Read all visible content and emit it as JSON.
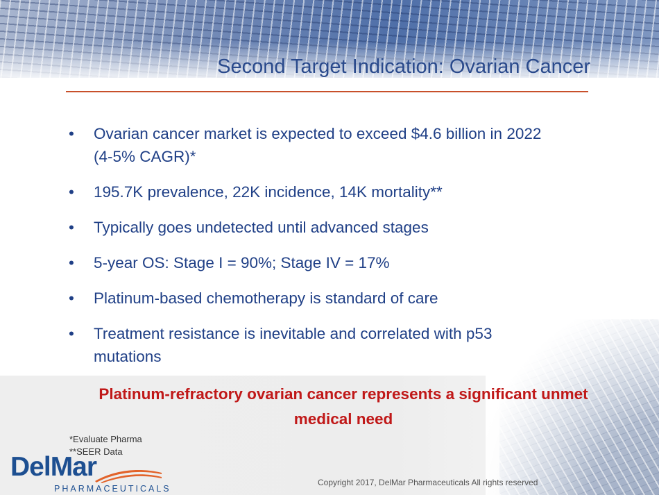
{
  "slide": {
    "title": "Second Target Indication:  Ovarian Cancer",
    "bullets": [
      {
        "line1": "Ovarian cancer market is expected to exceed $4.6 billion in 2022",
        "line2": "(4-5% CAGR)*"
      },
      {
        "line1": "195.7K prevalence, 22K incidence, 14K mortality**",
        "line2": ""
      },
      {
        "line1": "Typically goes undetected until advanced stages",
        "line2": ""
      },
      {
        "line1": "5-year OS: Stage I = 90%; Stage IV = 17%",
        "line2": ""
      },
      {
        "line1": "Platinum-based chemotherapy is standard of care",
        "line2": ""
      },
      {
        "line1": "Treatment resistance is inevitable and correlated with p53",
        "line2": "mutations"
      }
    ],
    "callout": {
      "line1": "Platinum-refractory ovarian cancer represents a significant unmet",
      "line2": "medical need"
    },
    "footnotes": [
      "*Evaluate Pharma",
      "**SEER Data"
    ],
    "logo": {
      "name": "DelMar",
      "sub": "PHARMACEUTICALS"
    },
    "copyright": "Copyright 2017, DelMar Pharmaceuticals All rights reserved",
    "colors": {
      "title": "#2a4a8c",
      "rule": "#c8502b",
      "bullet_text": "#1f3f86",
      "callout": "#c01818",
      "logo_blue": "#1d4f91",
      "logo_orange": "#e2632a"
    }
  }
}
